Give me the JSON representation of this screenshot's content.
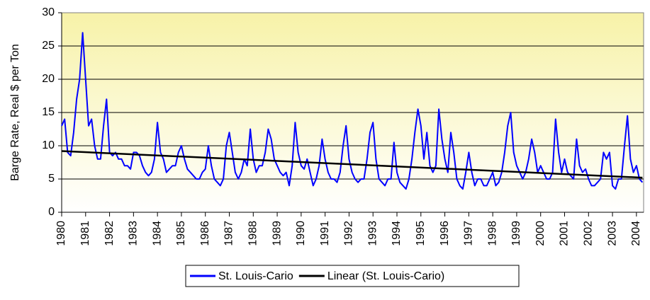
{
  "chart_data": {
    "type": "line",
    "ylabel": "Barge Rate, Real $ per Ton",
    "x": [
      1980,
      1980.125,
      1980.25,
      1980.375,
      1980.5,
      1980.625,
      1980.75,
      1980.875,
      1981,
      1981.125,
      1981.25,
      1981.375,
      1981.5,
      1981.625,
      1981.75,
      1981.875,
      1982,
      1982.125,
      1982.25,
      1982.375,
      1982.5,
      1982.625,
      1982.75,
      1982.875,
      1983,
      1983.125,
      1983.25,
      1983.375,
      1983.5,
      1983.625,
      1983.75,
      1983.875,
      1984,
      1984.125,
      1984.25,
      1984.375,
      1984.5,
      1984.625,
      1984.75,
      1984.875,
      1985,
      1985.125,
      1985.25,
      1985.375,
      1985.5,
      1985.625,
      1985.75,
      1985.875,
      1986,
      1986.125,
      1986.25,
      1986.375,
      1986.5,
      1986.625,
      1986.75,
      1986.875,
      1987,
      1987.125,
      1987.25,
      1987.375,
      1987.5,
      1987.625,
      1987.75,
      1987.875,
      1988,
      1988.125,
      1988.25,
      1988.375,
      1988.5,
      1988.625,
      1988.75,
      1988.875,
      1989,
      1989.125,
      1989.25,
      1989.375,
      1989.5,
      1989.625,
      1989.75,
      1989.875,
      1990,
      1990.125,
      1990.25,
      1990.375,
      1990.5,
      1990.625,
      1990.75,
      1990.875,
      1991,
      1991.125,
      1991.25,
      1991.375,
      1991.5,
      1991.625,
      1991.75,
      1991.875,
      1992,
      1992.125,
      1992.25,
      1992.375,
      1992.5,
      1992.625,
      1992.75,
      1992.875,
      1993,
      1993.125,
      1993.25,
      1993.375,
      1993.5,
      1993.625,
      1993.75,
      1993.875,
      1994,
      1994.125,
      1994.25,
      1994.375,
      1994.5,
      1994.625,
      1994.75,
      1994.875,
      1995,
      1995.125,
      1995.25,
      1995.375,
      1995.5,
      1995.625,
      1995.75,
      1995.875,
      1996,
      1996.125,
      1996.25,
      1996.375,
      1996.5,
      1996.625,
      1996.75,
      1996.875,
      1997,
      1997.125,
      1997.25,
      1997.375,
      1997.5,
      1997.625,
      1997.75,
      1997.875,
      1998,
      1998.125,
      1998.25,
      1998.375,
      1998.5,
      1998.625,
      1998.75,
      1998.875,
      1999,
      1999.125,
      1999.25,
      1999.375,
      1999.5,
      1999.625,
      1999.75,
      1999.875,
      2000,
      2000.125,
      2000.25,
      2000.375,
      2000.5,
      2000.625,
      2000.75,
      2000.875,
      2001,
      2001.125,
      2001.25,
      2001.375,
      2001.5,
      2001.625,
      2001.75,
      2001.875,
      2002,
      2002.125,
      2002.25,
      2002.375,
      2002.5,
      2002.625,
      2002.75,
      2002.875,
      2003,
      2003.125,
      2003.25,
      2003.375,
      2003.5,
      2003.625,
      2003.75,
      2003.875,
      2004,
      2004.125,
      2004.25
    ],
    "series": [
      {
        "name": "St. Louis-Cario",
        "color": "#0000ff",
        "values": [
          13,
          14,
          9,
          8.5,
          12,
          17,
          20,
          27,
          20,
          13,
          14,
          10,
          8,
          8,
          13,
          17,
          9,
          8.5,
          9,
          8,
          8,
          7,
          7,
          6.5,
          9,
          9,
          8.5,
          7,
          6,
          5.5,
          6,
          8,
          13.5,
          9,
          8,
          6,
          6.5,
          7,
          7,
          9,
          10,
          8,
          6.5,
          6,
          5.5,
          5,
          5,
          6,
          6.5,
          10,
          7,
          5,
          4.5,
          4,
          5,
          10,
          12,
          9,
          6,
          5,
          6,
          8,
          7,
          12.5,
          8,
          6,
          7,
          7,
          9,
          12.5,
          11,
          8,
          7,
          6,
          5.5,
          6,
          4,
          7,
          13.5,
          9,
          7,
          6.5,
          8,
          6,
          4,
          5,
          7,
          11,
          8,
          6,
          5,
          5,
          4.5,
          6,
          10,
          13,
          8,
          6,
          5,
          4.5,
          5,
          5,
          8,
          12,
          13.5,
          8,
          5,
          4.5,
          4,
          5,
          5,
          10.5,
          6,
          4.5,
          4,
          3.5,
          5,
          8,
          12,
          15.5,
          13,
          8,
          12,
          7,
          6,
          7,
          15.5,
          11,
          8,
          6,
          12,
          9,
          5,
          4,
          3.5,
          6,
          9,
          6,
          4,
          5,
          5,
          4,
          4,
          5,
          6,
          4,
          4.5,
          6,
          9,
          13,
          15,
          9,
          7,
          6,
          5,
          6,
          8,
          11,
          9,
          6,
          7,
          6,
          5,
          5,
          6,
          14,
          9,
          6,
          8,
          6,
          5.5,
          5,
          11,
          7,
          6,
          6.5,
          5,
          4,
          4,
          4.5,
          5,
          9,
          8,
          9,
          4,
          3.5,
          5,
          5,
          10,
          14.5,
          8,
          6,
          7,
          5,
          4.5
        ]
      },
      {
        "name": "Linear (St. Louis-Cario)",
        "color": "#000000",
        "x": [
          1980,
          2004.25
        ],
        "values": [
          9.2,
          5.2
        ]
      }
    ],
    "xlim": [
      1980,
      2004.3
    ],
    "xticks": [
      1980,
      1981,
      1982,
      1983,
      1984,
      1985,
      1986,
      1987,
      1988,
      1989,
      1990,
      1991,
      1992,
      1993,
      1994,
      1995,
      1996,
      1997,
      1998,
      1999,
      2000,
      2001,
      2002,
      2003,
      2004
    ],
    "ylim": [
      0,
      30
    ],
    "yticks": [
      0,
      5,
      10,
      15,
      20,
      25,
      30
    ],
    "grid": true,
    "legend": "bottom"
  }
}
